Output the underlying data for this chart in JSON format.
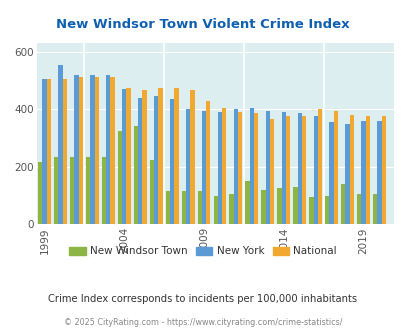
{
  "title": "New Windsor Town Violent Crime Index",
  "subtitle": "Crime Index corresponds to incidents per 100,000 inhabitants",
  "footer": "© 2025 CityRating.com - https://www.cityrating.com/crime-statistics/",
  "years": [
    1999,
    2000,
    2001,
    2002,
    2003,
    2004,
    2005,
    2006,
    2007,
    2008,
    2009,
    2010,
    2011,
    2012,
    2013,
    2014,
    2015,
    2016,
    2017,
    2018,
    2019,
    2020
  ],
  "new_windsor": [
    215,
    235,
    235,
    235,
    235,
    325,
    340,
    225,
    115,
    115,
    115,
    100,
    105,
    150,
    120,
    125,
    130,
    95,
    100,
    140,
    105,
    105
  ],
  "new_york": [
    505,
    555,
    520,
    520,
    520,
    470,
    440,
    445,
    435,
    400,
    395,
    390,
    400,
    405,
    395,
    390,
    385,
    375,
    355,
    350,
    360,
    360
  ],
  "national": [
    505,
    505,
    510,
    510,
    510,
    475,
    465,
    475,
    475,
    465,
    430,
    405,
    390,
    385,
    365,
    375,
    375,
    400,
    395,
    380,
    375,
    375
  ],
  "bar_colors": {
    "new_windsor": "#8db545",
    "new_york": "#5b9bd5",
    "national": "#f0a830"
  },
  "ylim": [
    0,
    630
  ],
  "yticks": [
    0,
    200,
    400,
    600
  ],
  "xtick_labels": [
    "1999",
    "2004",
    "2009",
    "2014",
    "2019"
  ],
  "xtick_positions": [
    1999,
    2004,
    2009,
    2014,
    2019
  ],
  "plot_bg": "#ddeef0",
  "title_color": "#1060b0",
  "subtitle_color": "#333333",
  "footer_color": "#888888",
  "legend_labels": [
    "New Windsor Town",
    "New York",
    "National"
  ]
}
